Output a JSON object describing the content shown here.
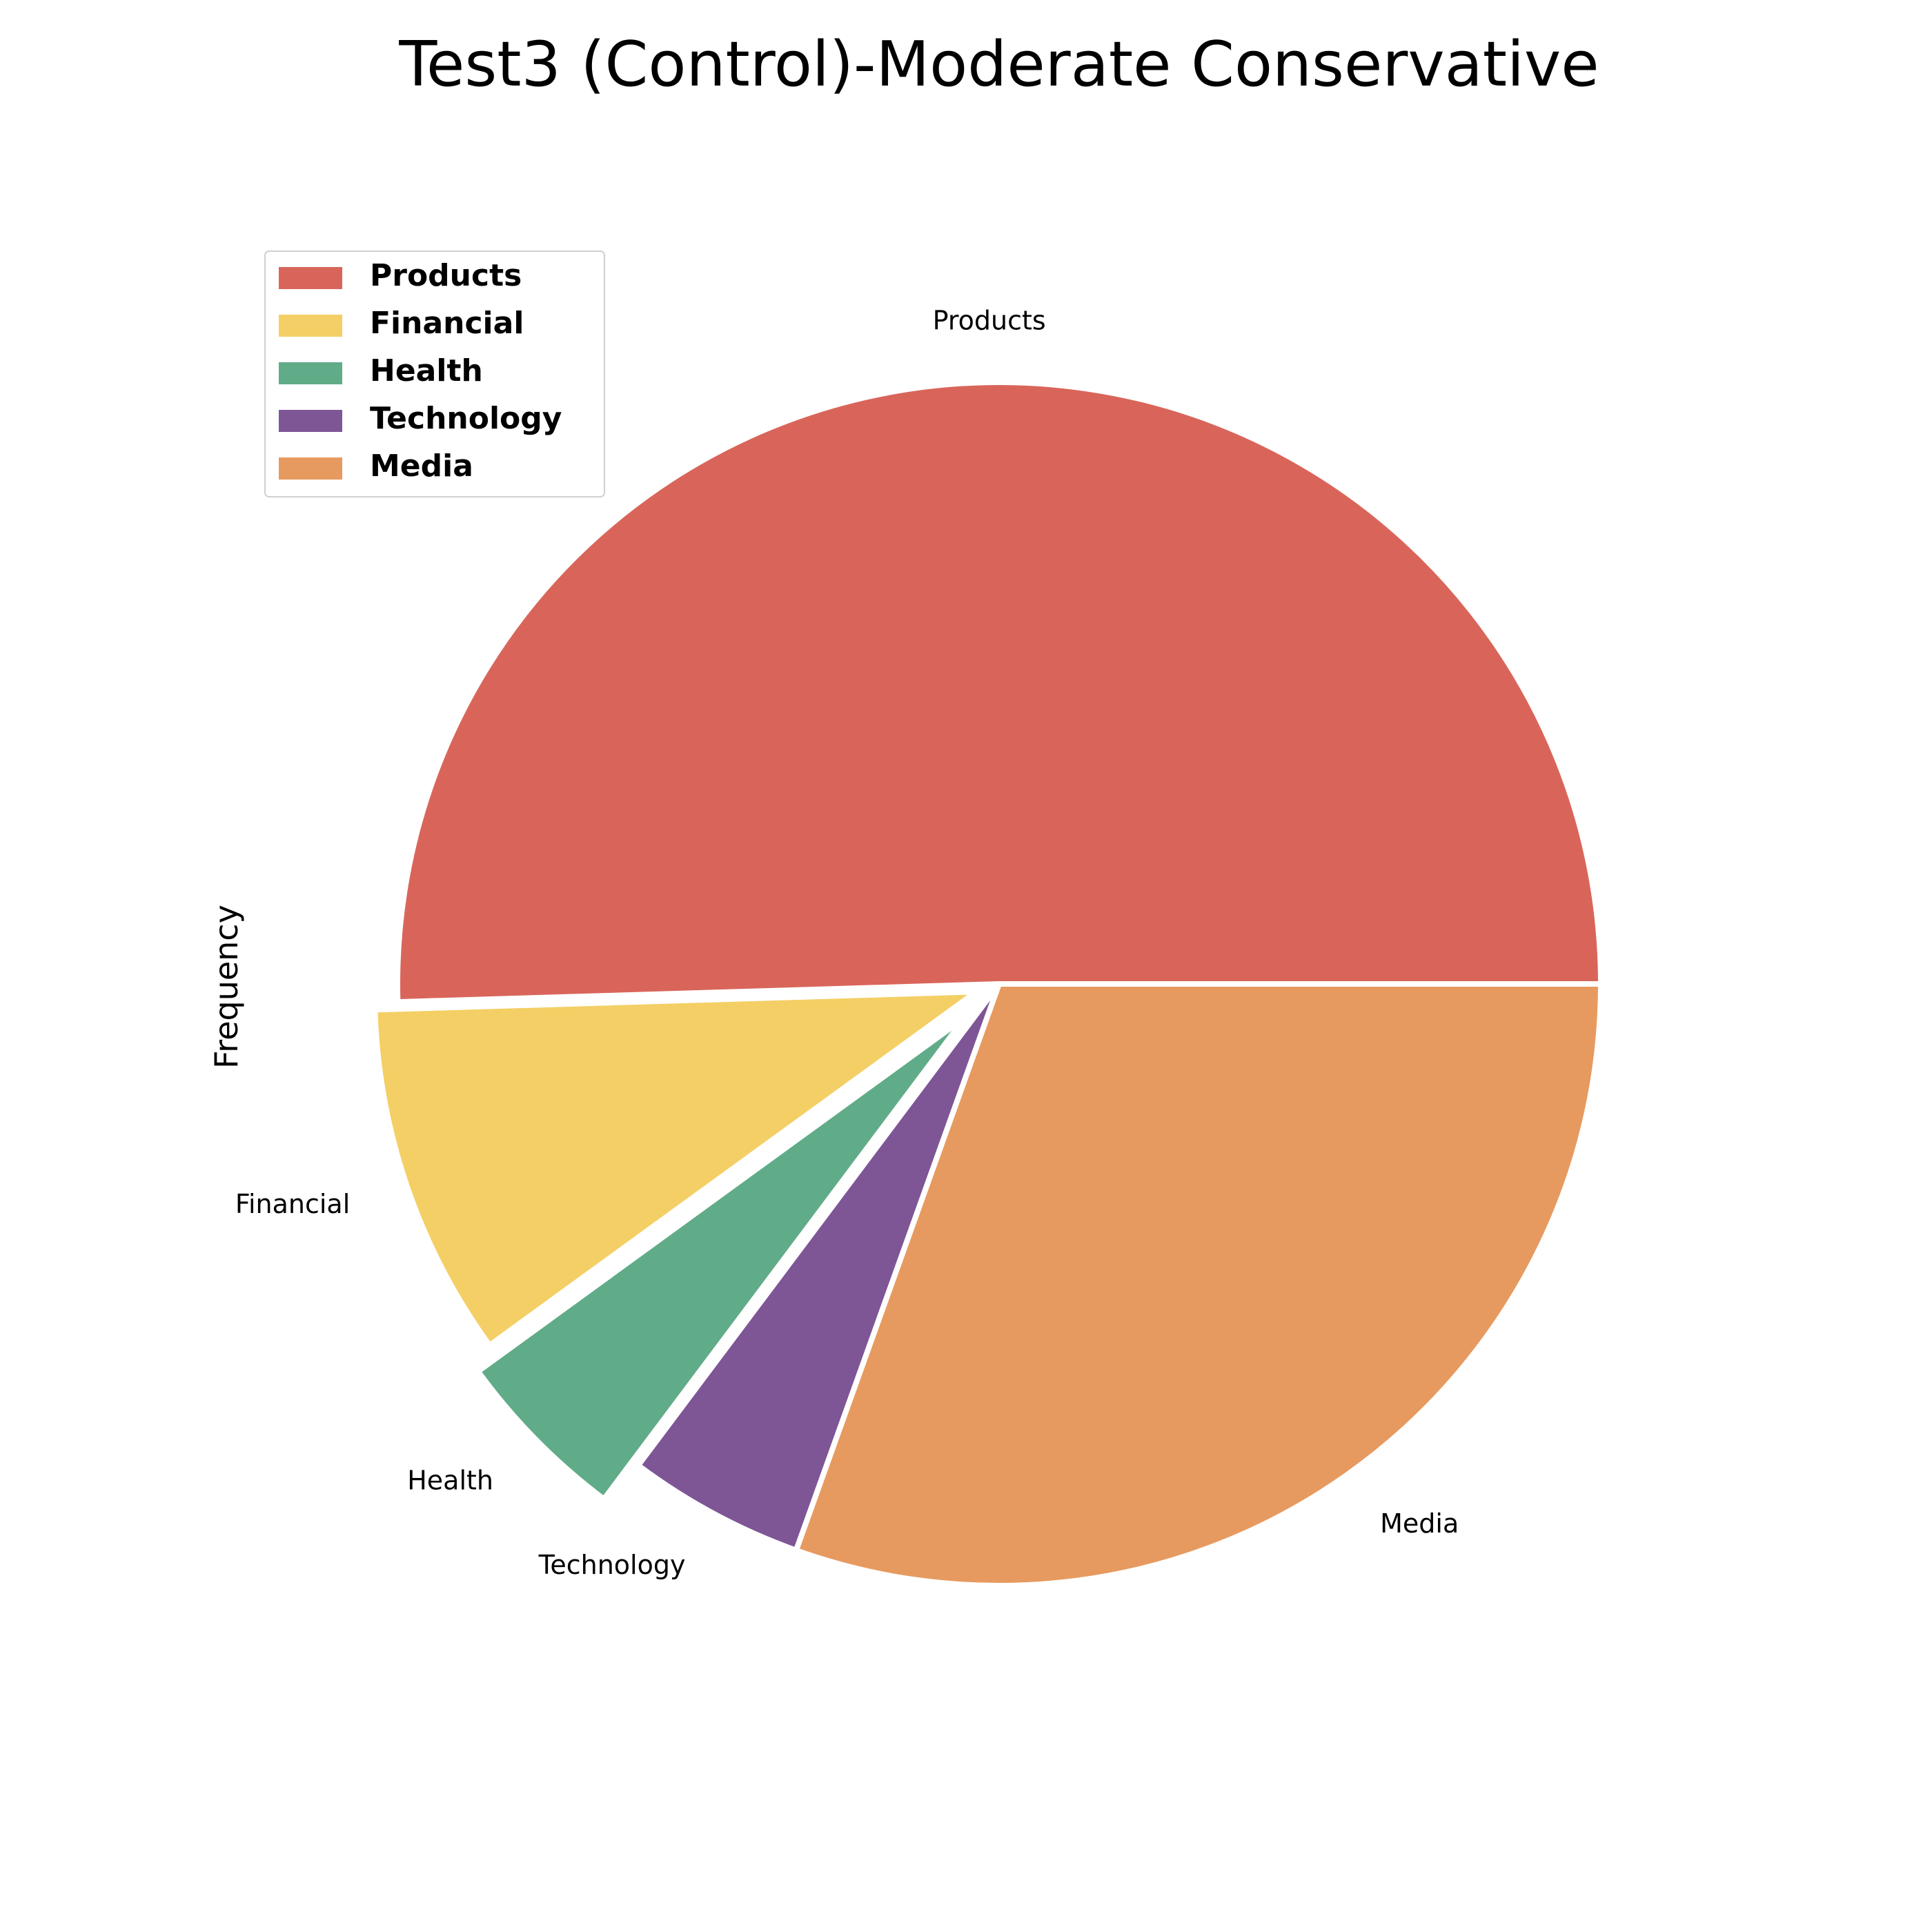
{
  "chart_data": {
    "type": "pie",
    "title": "Test3 (Control)-Moderate Conservative",
    "ylabel": "Frequency",
    "start_angle_deg": 0,
    "direction": "counterclockwise",
    "legend_placement": "upper-left",
    "slices": [
      {
        "label": "Products",
        "value": 53,
        "color": "#D9655A",
        "explode": 0
      },
      {
        "label": "Financial",
        "value": 10,
        "color": "#F4CF65",
        "explode": 0.04
      },
      {
        "label": "Health",
        "value": 5,
        "color": "#60AC88",
        "explode": 0.08
      },
      {
        "label": "Technology",
        "value": 5,
        "color": "#7E5696",
        "explode": 0
      },
      {
        "label": "Media",
        "value": 32,
        "color": "#E79A5F",
        "explode": 0
      }
    ]
  }
}
